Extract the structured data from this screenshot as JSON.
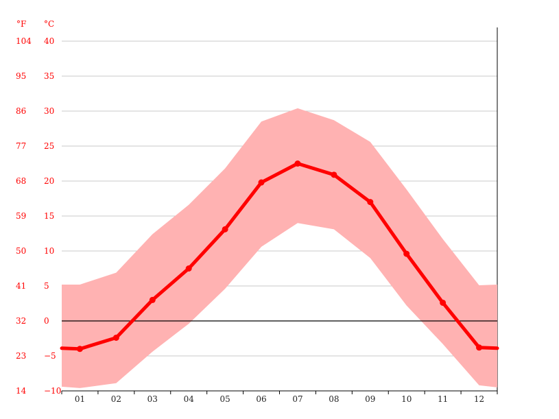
{
  "chart_data": {
    "type": "line",
    "title": "",
    "xlabel": "",
    "ylabel": "",
    "unit_labels": {
      "fahrenheit": "°F",
      "celsius": "°C"
    },
    "categories": [
      "01",
      "02",
      "03",
      "04",
      "05",
      "06",
      "07",
      "08",
      "09",
      "10",
      "11",
      "12"
    ],
    "ylim": [
      -10,
      40
    ],
    "y_ticks_c": [
      "40",
      "35",
      "30",
      "25",
      "20",
      "15",
      "10",
      "5",
      "0",
      "−5",
      "−10"
    ],
    "y_ticks_f": [
      "104",
      "95",
      "86",
      "77",
      "68",
      "59",
      "50",
      "41",
      "32",
      "23",
      "14"
    ],
    "y_tick_values": [
      40,
      35,
      30,
      25,
      20,
      15,
      10,
      5,
      0,
      -5,
      -10
    ],
    "grid": true,
    "series": [
      {
        "role": "mean",
        "values": [
          -4.0,
          -2.4,
          3.0,
          7.5,
          13.1,
          19.8,
          22.5,
          20.9,
          17.0,
          9.6,
          2.6,
          -3.8
        ],
        "color": "#ff0000"
      }
    ],
    "band": {
      "upper": [
        5.2,
        6.9,
        12.4,
        16.6,
        21.8,
        28.5,
        30.4,
        28.7,
        25.6,
        18.8,
        11.7,
        5.1
      ],
      "lower": [
        -9.6,
        -8.9,
        -4.4,
        -0.4,
        4.6,
        10.6,
        14.0,
        13.1,
        9.0,
        2.2,
        -3.3,
        -9.2
      ],
      "color": "#ffb2b2"
    },
    "edge_values": {
      "mean": [
        -3.9,
        -3.9
      ],
      "upper": [
        5.2,
        5.2
      ],
      "lower": [
        -9.4,
        -9.5
      ]
    }
  }
}
